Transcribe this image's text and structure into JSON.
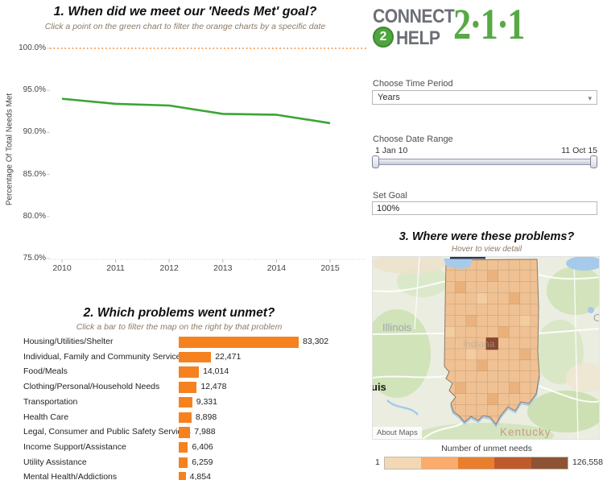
{
  "ui": {
    "logo": {
      "word1": "CONNECT",
      "circle_digit": "2",
      "word2": "HELP",
      "number": "2·1·1",
      "green": "#4fa53e",
      "gray": "#6c7076"
    },
    "controls": {
      "time_period_label": "Choose Time Period",
      "time_period_value": "Years",
      "dropdown_arrow": "▾",
      "date_range_label": "Choose Date Range",
      "date_start": "1 Jan 10",
      "date_end": "11 Oct 15",
      "goal_label": "Set Goal",
      "goal_value": "100%"
    },
    "map": {
      "title": "3. Where were these problems?",
      "subtitle": "Hover to view detail",
      "region_labels": {
        "illinois": "Illinois",
        "kentucky": "Kentucky",
        "indiana": "Indiana",
        "partial_city_left": "uis",
        "partial_right": "O"
      },
      "attribution": "About Maps",
      "state_fill": "#f0c193",
      "highlight_county_fill": "#8a4830",
      "legend": {
        "title": "Number of unmet needs",
        "min_label": "1",
        "max_label": "126,558",
        "colors": [
          "#f3d8b6",
          "#fbac6c",
          "#e87e2e",
          "#be5a2d",
          "#8c5434"
        ]
      }
    }
  },
  "chart_data": [
    {
      "type": "line",
      "title": "1. When did we meet our 'Needs Met' goal?",
      "subtitle": "Click a point on the green chart to filter the orange charts by a specific date",
      "ylabel": "Percentage Of Total Needs Met",
      "x": [
        2010,
        2011,
        2012,
        2013,
        2014,
        2015
      ],
      "series": [
        {
          "name": "Percentage Of Total Needs Met",
          "color": "#3ba533",
          "values": [
            94.0,
            93.4,
            93.2,
            92.2,
            92.1,
            91.1
          ]
        }
      ],
      "goal_line": {
        "value": 100,
        "style": "dotted",
        "color": "#f29240"
      },
      "y_tick_labels": [
        "100.0%",
        "95.0%",
        "90.0%",
        "85.0%",
        "80.0%",
        "75.0%"
      ],
      "y_tick_values": [
        100,
        95,
        90,
        85,
        80,
        75
      ],
      "ylim": [
        75,
        100
      ],
      "grid": false,
      "legend_position": "none"
    },
    {
      "type": "bar",
      "title": "2. Which problems went unmet?",
      "subtitle": "Click a bar to filter the map on the right by that problem",
      "orientation": "horizontal",
      "color": "#f5821f",
      "categories": [
        "Housing/Utilities/Shelter",
        "Individual, Family and Community Services",
        "Food/Meals",
        "Clothing/Personal/Household Needs",
        "Transportation",
        "Health Care",
        "Legal, Consumer and Public Safety Services",
        "Income Support/Assistance",
        "Utility Assistance",
        "Mental Health/Addictions"
      ],
      "values": [
        83302,
        22471,
        14014,
        12478,
        9331,
        8898,
        7988,
        6406,
        6259,
        4854
      ],
      "value_labels": [
        "83,302",
        "22,471",
        "14,014",
        "12,478",
        "9,331",
        "8,898",
        "7,988",
        "6,406",
        "6,259",
        "4,854"
      ],
      "xlabel": "",
      "ylabel": ""
    }
  ]
}
